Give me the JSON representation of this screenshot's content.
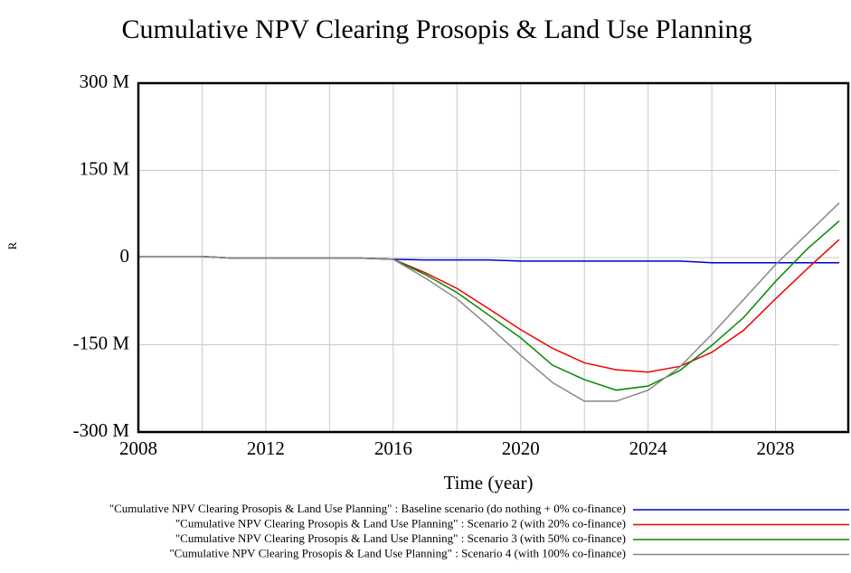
{
  "chart_data": {
    "type": "line",
    "title": "Cumulative NPV Clearing Prosopis & Land Use Planning",
    "x_label": "Time (year)",
    "y_label": "R",
    "x": [
      2008,
      2009,
      2010,
      2011,
      2012,
      2013,
      2014,
      2015,
      2016,
      2017,
      2018,
      2019,
      2020,
      2021,
      2022,
      2023,
      2024,
      2025,
      2026,
      2027,
      2028,
      2029,
      2030
    ],
    "xlim": [
      2008,
      2030
    ],
    "xticks": [
      2008,
      2012,
      2016,
      2020,
      2024,
      2028
    ],
    "ylim": [
      -300000000,
      300000000
    ],
    "yticks": [
      {
        "value": 300000000,
        "label": "300 M"
      },
      {
        "value": 150000000,
        "label": "150 M"
      },
      0,
      {
        "value": -150000000,
        "label": "-150 M"
      },
      {
        "value": -300000000,
        "label": "-300 M"
      }
    ],
    "grid": true,
    "series": [
      {
        "name": "\"Cumulative NPV Clearing Prosopis & Land Use Planning\" : Baseline scenario (do nothing + 0% co-finance)",
        "color": "#0000cc",
        "values": [
          2000000,
          2000000,
          2000000,
          -1000000,
          -1000000,
          -1000000,
          -1000000,
          -1000000,
          -3000000,
          -4000000,
          -4000000,
          -4000000,
          -6000000,
          -6000000,
          -6000000,
          -6000000,
          -6000000,
          -6000000,
          -9000000,
          -9000000,
          -9000000,
          -9000000,
          -9000000
        ]
      },
      {
        "name": "\"Cumulative NPV Clearing Prosopis & Land Use Planning\" : Scenario 2 (with 20% co-finance)",
        "color": "#ee0000",
        "values": [
          2000000,
          2000000,
          2000000,
          -1000000,
          -1000000,
          -1000000,
          -1000000,
          -1000000,
          -3000000,
          -26000000,
          -53000000,
          -88000000,
          -124000000,
          -156000000,
          -181000000,
          -193000000,
          -197000000,
          -187000000,
          -163000000,
          -125000000,
          -71000000,
          -19000000,
          31000000
        ]
      },
      {
        "name": "\"Cumulative NPV Clearing Prosopis & Land Use Planning\" : Scenario 3 (with 50% co-finance)",
        "color": "#008800",
        "values": [
          2000000,
          2000000,
          2000000,
          -1000000,
          -1000000,
          -1000000,
          -1000000,
          -1000000,
          -3000000,
          -29000000,
          -60000000,
          -99000000,
          -138000000,
          -185000000,
          -210000000,
          -228000000,
          -221000000,
          -194000000,
          -151000000,
          -103000000,
          -41000000,
          15000000,
          63000000
        ]
      },
      {
        "name": "\"Cumulative NPV Clearing Prosopis & Land Use Planning\" : Scenario 4 (with 100% co-finance)",
        "color": "#888888",
        "values": [
          2000000,
          2000000,
          2000000,
          -1000000,
          -1000000,
          -1000000,
          -1000000,
          -1000000,
          -3000000,
          -35000000,
          -71000000,
          -118000000,
          -168000000,
          -215000000,
          -247000000,
          -247000000,
          -228000000,
          -188000000,
          -132000000,
          -72000000,
          -12000000,
          41000000,
          94000000
        ]
      }
    ]
  }
}
